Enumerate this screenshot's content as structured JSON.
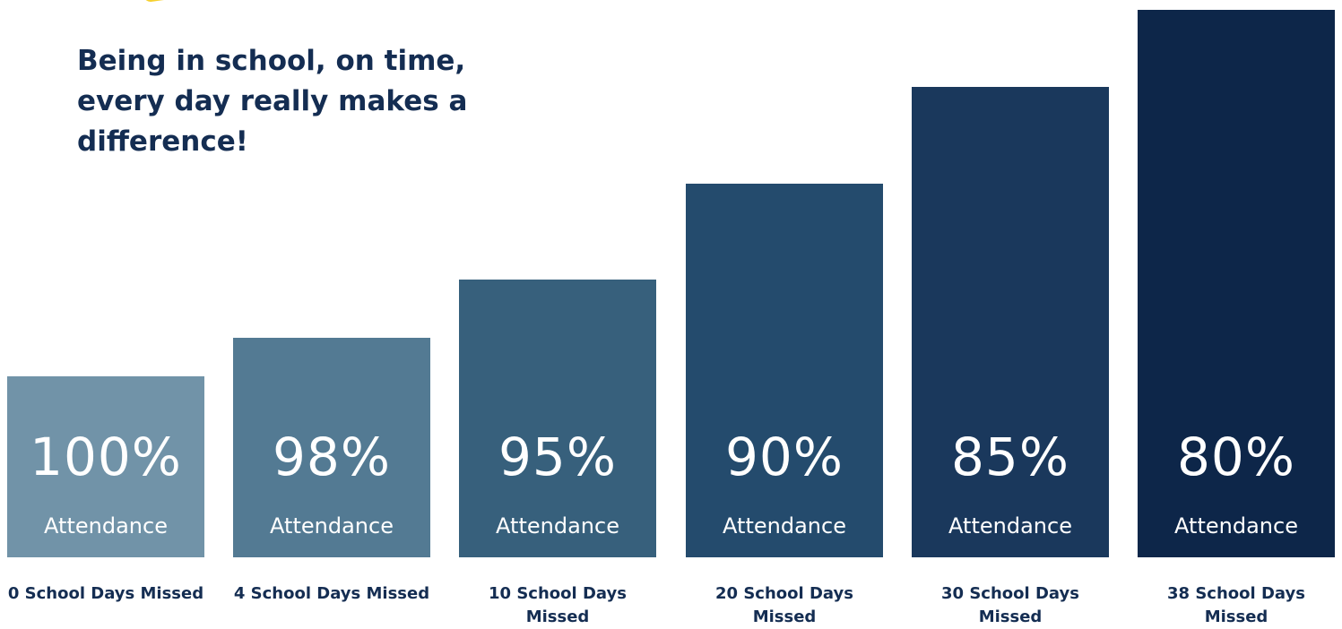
{
  "headline": "Being in school, on time, every day really makes a difference!",
  "colors": {
    "highlight": "#f6d02f",
    "headline_text": "#142d52",
    "bars": [
      "#7193a8",
      "#537a93",
      "#37607c",
      "#244b6d",
      "#1a385c",
      "#0d2649"
    ]
  },
  "chart_data": {
    "type": "bar",
    "categories": [
      "0 School Days Missed",
      "4 School Days Missed",
      "10 School Days Missed",
      "20 School Days Missed",
      "30 School Days Missed",
      "38 School Days Missed"
    ],
    "values": [
      0,
      4,
      10,
      20,
      30,
      38
    ],
    "data_labels": [
      "100%",
      "98%",
      "95%",
      "90%",
      "85%",
      "80%"
    ],
    "data_sublabel": "Attendance",
    "title": "",
    "xlabel": "",
    "ylabel": "",
    "grid": false,
    "legend": "none"
  }
}
